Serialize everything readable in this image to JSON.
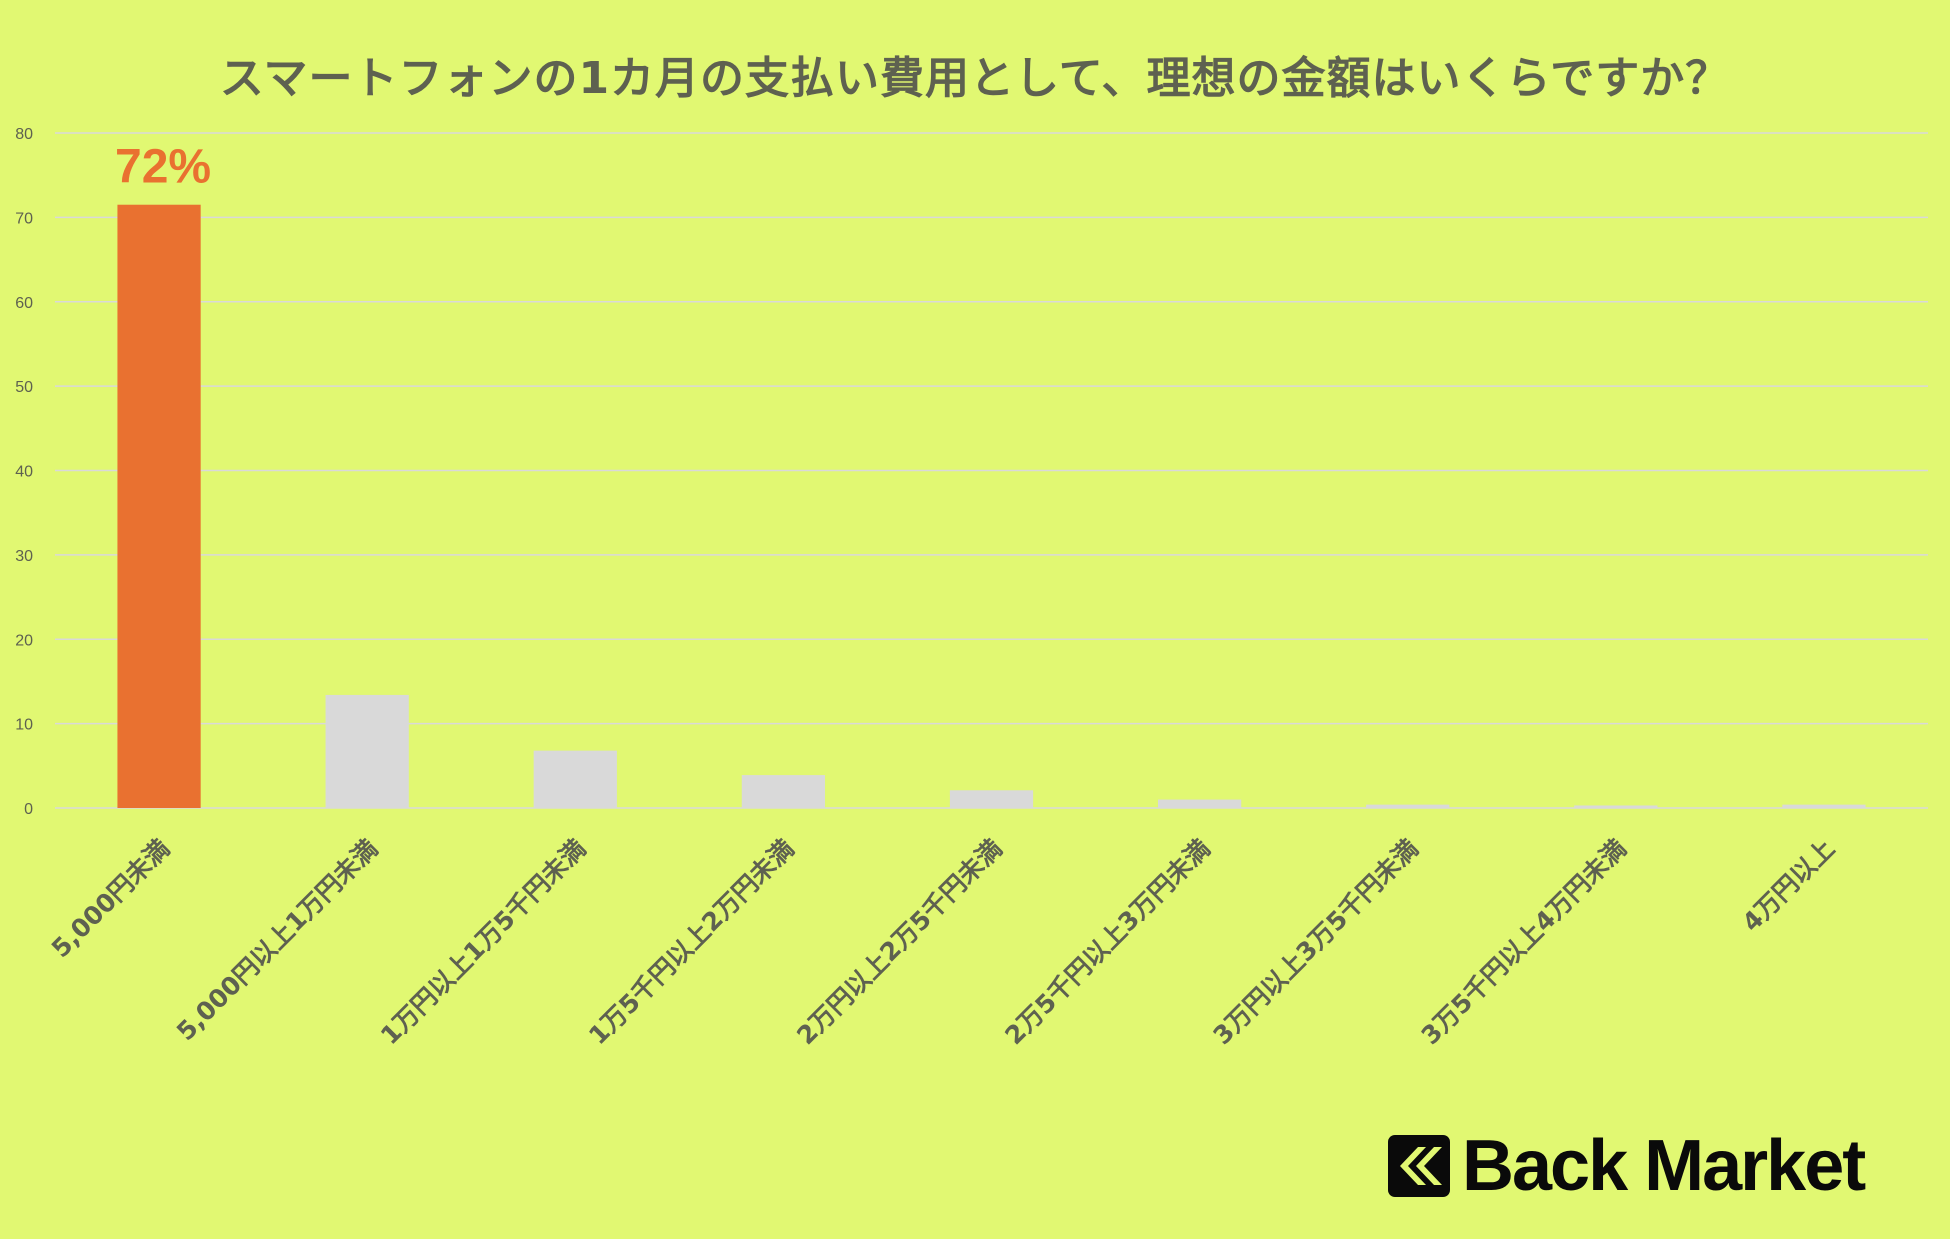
{
  "chart_data": {
    "type": "bar",
    "title": "スマートフォンの1カ月の支払い費用として、理想の金額はいくらですか？",
    "categories": [
      "5,000円未満",
      "5,000円以上1万円未満",
      "1万円以上1万5千円未満",
      "1万5千円以上2万円未満",
      "2万円以上2万5千円未満",
      "2万5千円以上3万円未満",
      "3万円以上3万5千円未満",
      "3万5千円以上4万円未満",
      "4万円以上"
    ],
    "values": [
      71.5,
      13.4,
      6.8,
      3.9,
      2.1,
      1.0,
      0.4,
      0.3,
      0.4
    ],
    "data_labels": {
      "0": "72%"
    },
    "xlabel": "",
    "ylabel": "",
    "ylim": [
      0,
      80
    ],
    "yticks": [
      0,
      10,
      20,
      30,
      40,
      50,
      60,
      70,
      80
    ],
    "grid": true,
    "colors": {
      "highlight": "#e97130",
      "default": "#d9d9d9",
      "background": "#e1f872",
      "text": "#5e6150"
    }
  },
  "brand": {
    "logo_text": "Back Market"
  }
}
